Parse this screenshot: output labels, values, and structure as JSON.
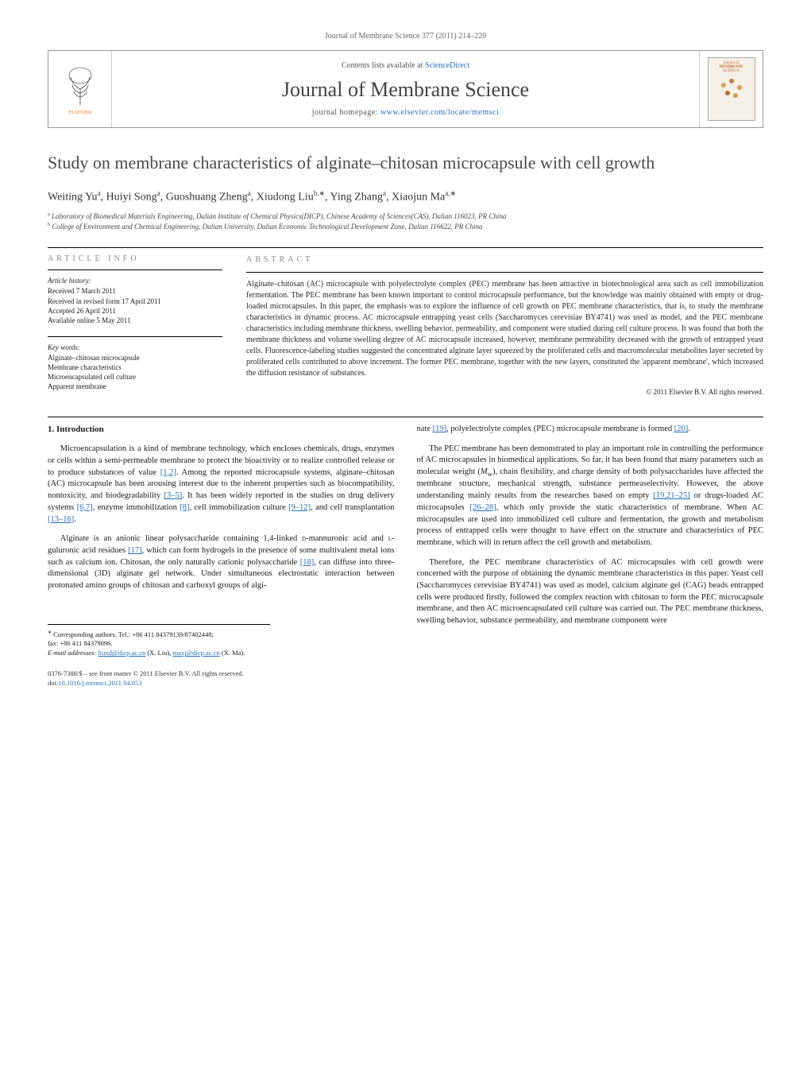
{
  "journal_header": "Journal of Membrane Science 377 (2011) 214–220",
  "banner": {
    "contents_prefix": "Contents lists available at ",
    "contents_link": "ScienceDirect",
    "journal_name": "Journal of Membrane Science",
    "homepage_prefix": "journal homepage: ",
    "homepage_link": "www.elsevier.com/locate/memsci",
    "cover_label_top": "journal of",
    "cover_label_mid": "MEMBRANE",
    "cover_label_bot": "SCIENCE"
  },
  "title": "Study on membrane characteristics of alginate–chitosan microcapsule with cell growth",
  "authors_html": "Weiting Yu<sup>a</sup>, Huiyi Song<sup>a</sup>, Guoshuang Zheng<sup>a</sup>, Xiudong Liu<sup>b,∗</sup>, Ying Zhang<sup>a</sup>, Xiaojun Ma<sup>a,∗</sup>",
  "affiliations": {
    "a": "Laboratory of Biomedical Materials Engineering, Dalian Institute of Chemical Physics(DICP), Chinese Academy of Sciences(CAS), Dalian 116023, PR China",
    "b": "College of Environment and Chemical Engineering, Dalian University, Dalian Economic Technological Development Zone, Dalian 116622, PR China"
  },
  "article_info_label": "article info",
  "abstract_label": "abstract",
  "history": {
    "label": "Article history:",
    "items": [
      "Received 7 March 2011",
      "Received in revised form 17 April 2011",
      "Accepted 26 April 2011",
      "Available online 5 May 2011"
    ]
  },
  "keywords": {
    "label": "Key words:",
    "items": [
      "Alginate–chitosan microcapsule",
      "Membrane characteristics",
      "Microencapsulated cell culture",
      "Apparent membrane"
    ]
  },
  "abstract_text": "Alginate–chitosan (AC) microcapsule with polyelectrolyte complex (PEC) membrane has been attractive in biotechnological area such as cell immobilization fermentation. The PEC membrane has been known important to control microcapsule performance, but the knowledge was mainly obtained with empty or drug-loaded microcapsules. In this paper, the emphasis was to explore the influence of cell growth on PEC membrane characteristics, that is, to study the membrane characteristics in dynamic process. AC microcapsule entrapping yeast cells (Saccharomyces cerevisiae BY4741) was used as model, and the PEC membrane characteristics including membrane thickness, swelling behavior, permeability, and component were studied during cell culture process. It was found that both the membrane thickness and volume swelling degree of AC microcapsule increased, however, membrane permeability decreased with the growth of entrapped yeast cells. Fluorescence-labeling studies suggested the concentrated alginate layer squeezed by the proliferated cells and macromolecular metabolites layer secreted by proliferated cells contributed to above increment. The former PEC membrane, together with the new layers, constituted the 'apparent membrane', which increased the diffusion resistance of substances.",
  "copyright": "© 2011 Elsevier B.V. All rights reserved.",
  "intro_heading": "1. Introduction",
  "col1": {
    "p1_a": "Microencapsulation is a kind of membrane technology, which encloses chemicals, drugs, enzymes or cells within a semi-permeable membrane to protect the bioactivity or to realize controlled release or to produce substances of value ",
    "p1_ref1": "[1,2]",
    "p1_b": ". Among the reported microcapsule systems, alginate–chitosan (AC) microcapsule has been arousing interest due to the inherent properties such as biocompatibility, nontoxicity, and biodegradability ",
    "p1_ref2": "[3–5]",
    "p1_c": ". It has been widely reported in the studies on drug delivery systems ",
    "p1_ref3": "[6,7]",
    "p1_d": ", enzyme immobilization ",
    "p1_ref4": "[8]",
    "p1_e": ", cell immobilization culture ",
    "p1_ref5": "[9–12]",
    "p1_f": ", and cell transplantation ",
    "p1_ref6": "[13–16]",
    "p1_g": ".",
    "p2_a": "Alginate is an anionic linear polysaccharide containing 1,4-linked ",
    "p2_sc1": "d",
    "p2_b": "-mannuronic acid and ",
    "p2_sc2": "l",
    "p2_c": "-guluronic acid residues ",
    "p2_ref1": "[17]",
    "p2_d": ", which can form hydrogels in the presence of some multivalent metal ions such as calcium ion. Chitosan, the only naturally cationic polysaccharide ",
    "p2_ref2": "[18]",
    "p2_e": ", can diffuse into three-dimensional (3D) alginate gel network. Under simultaneous electrostatic interaction between protonated amino groups of chitosan and carboxyl groups of algi-"
  },
  "col2": {
    "p0_a": "nate ",
    "p0_ref1": "[19]",
    "p0_b": ", polyelectrolyte complex (PEC) microcapsule membrane is formed ",
    "p0_ref2": "[20]",
    "p0_c": ".",
    "p1_a": "The PEC membrane has been demonstrated to play an important role in controlling the performance of AC microcapsules in biomedical applications. So far, it has been found that many parameters such as molecular weight (",
    "p1_i": "M",
    "p1_sub": "w",
    "p1_b": "), chain flexibility, and charge density of both polysaccharides have affected the membrane structure, mechanical strength, substance permeaselectivity. However, the above understanding mainly results from the researches based on empty ",
    "p1_ref1": "[19,21–25]",
    "p1_c": " or drugs-loaded AC microcapsules ",
    "p1_ref2": "[26–28]",
    "p1_d": ", which only provide the static characteristics of membrane. When AC microcapsules are used into immobilized cell culture and fermentation, the growth and metabolism process of entrapped cells were thought to have effect on the structure and characteristics of PEC membrane, which will in return affect the cell growth and metabolism.",
    "p2": "Therefore, the PEC membrane characteristics of AC microcapsules with cell growth were concerned with the purpose of obtaining the dynamic membrane characteristics in this paper. Yeast cell (Saccharomyces cerevisiae BY4741) was used as model, calcium alginate gel (CAG) beads entrapped cells were produced firstly, followed the complex reaction with chitosan to form the PEC microcapsule membrane, and then AC microencapsulated cell culture was carried out. The PEC membrane thickness, swelling behavior, substance permeability, and membrane component were"
  },
  "corresponding": {
    "mark": "∗",
    "text": " Corresponding authors. Tel.: +86 411 84379139/87402448;",
    "fax": "fax: +86 411 84379096.",
    "email_label": "E-mail addresses: ",
    "email1": "liuxd@dicp.ac.cn",
    "email1_who": " (X. Liu), ",
    "email2": "maxj@dicp.ac.cn",
    "email2_who": " (X. Ma)."
  },
  "footer": {
    "issn": "0376-7388/$ – see front matter © 2011 Elsevier B.V. All rights reserved.",
    "doi_label": "doi:",
    "doi": "10.1016/j.memsci.2011.04.053"
  },
  "colors": {
    "link": "#2a6ebb",
    "text": "#1a1a1a",
    "muted": "#888888"
  }
}
